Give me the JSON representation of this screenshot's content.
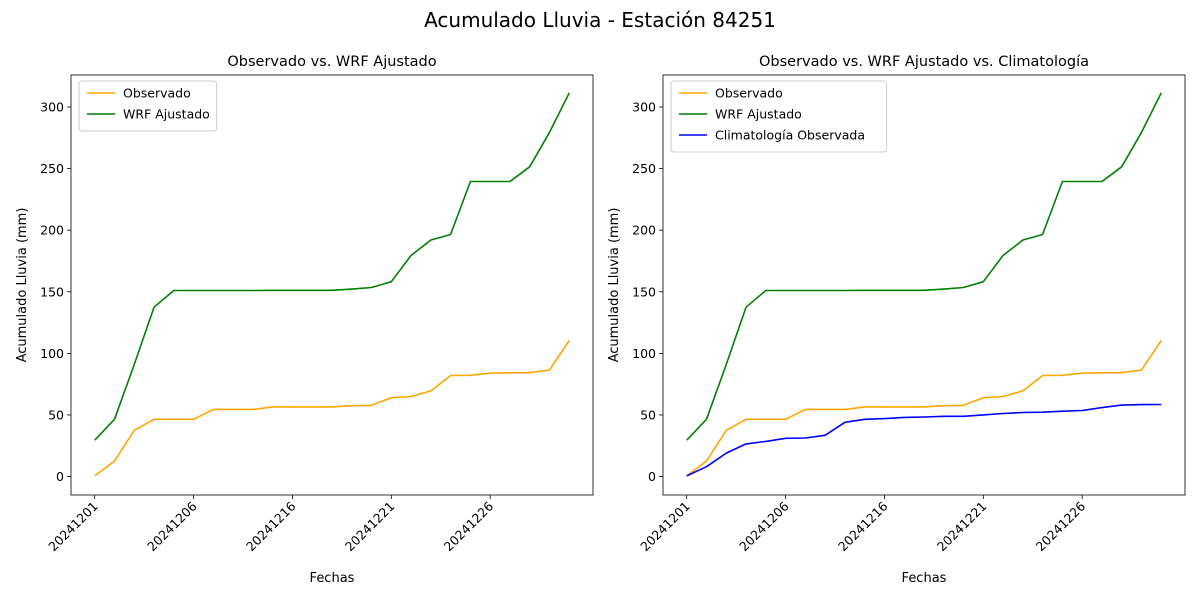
{
  "suptitle": "Acumulado Lluvia - Estación 84251",
  "colors": {
    "observado": "#ffa500",
    "wrf": "#008000",
    "clim": "#0000ff"
  },
  "chart_data": [
    {
      "type": "line",
      "title": "Observado vs. WRF Ajustado",
      "xlabel": "Fechas",
      "ylabel": "Acumulado Lluvia (mm)",
      "x_tick_labels": [
        "20241201",
        "20241206",
        "20241216",
        "20241221",
        "20241226"
      ],
      "y_ticks": [
        0,
        50,
        100,
        150,
        200,
        250,
        300
      ],
      "ylim": [
        -15,
        326
      ],
      "legend_position": "upper-left",
      "series": [
        {
          "name": "Observado",
          "color": "#ffa500",
          "values": [
            0.5,
            12.5,
            37.5,
            46.5,
            46.5,
            46.5,
            54.5,
            54.5,
            54.5,
            56.5,
            56.5,
            56.5,
            56.5,
            57.5,
            57.8,
            64.0,
            65.0,
            69.5,
            82.0,
            82.2,
            84.0,
            84.2,
            84.4,
            86.5,
            110.5
          ]
        },
        {
          "name": "WRF Ajustado",
          "color": "#008000",
          "values": [
            29.5,
            46.5,
            91.0,
            137.5,
            151.0,
            151.0,
            151.0,
            151.0,
            151.0,
            151.2,
            151.2,
            151.2,
            151.2,
            152.2,
            153.5,
            158.2,
            179.5,
            192.0,
            196.5,
            239.5,
            239.5,
            239.5,
            251.5,
            279.5,
            311.5
          ]
        }
      ]
    },
    {
      "type": "line",
      "title": "Observado vs. WRF Ajustado vs. Climatología",
      "xlabel": "Fechas",
      "ylabel": "Acumulado Lluvia (mm)",
      "x_tick_labels": [
        "20241201",
        "20241206",
        "20241216",
        "20241221",
        "20241226"
      ],
      "y_ticks": [
        0,
        50,
        100,
        150,
        200,
        250,
        300
      ],
      "ylim": [
        -15,
        326
      ],
      "legend_position": "upper-left",
      "series": [
        {
          "name": "Observado",
          "color": "#ffa500",
          "values": [
            0.5,
            12.5,
            37.5,
            46.5,
            46.5,
            46.5,
            54.5,
            54.5,
            54.5,
            56.5,
            56.5,
            56.5,
            56.5,
            57.5,
            57.8,
            64.0,
            65.0,
            69.5,
            82.0,
            82.2,
            84.0,
            84.2,
            84.4,
            86.5,
            110.5
          ]
        },
        {
          "name": "WRF Ajustado",
          "color": "#008000",
          "values": [
            29.5,
            46.5,
            91.0,
            137.5,
            151.0,
            151.0,
            151.0,
            151.0,
            151.0,
            151.2,
            151.2,
            151.2,
            151.2,
            152.2,
            153.5,
            158.2,
            179.5,
            192.0,
            196.5,
            239.5,
            239.5,
            239.5,
            251.5,
            279.5,
            311.5
          ]
        },
        {
          "name": "Climatología Observada",
          "color": "#0000ff",
          "values": [
            0.5,
            8.0,
            19.0,
            26.5,
            28.5,
            31.0,
            31.3,
            33.5,
            44.0,
            46.5,
            47.0,
            48.0,
            48.3,
            48.9,
            48.9,
            50.0,
            51.2,
            52.0,
            52.2,
            53.0,
            53.6,
            56.0,
            58.0,
            58.4,
            58.5
          ]
        }
      ]
    }
  ]
}
